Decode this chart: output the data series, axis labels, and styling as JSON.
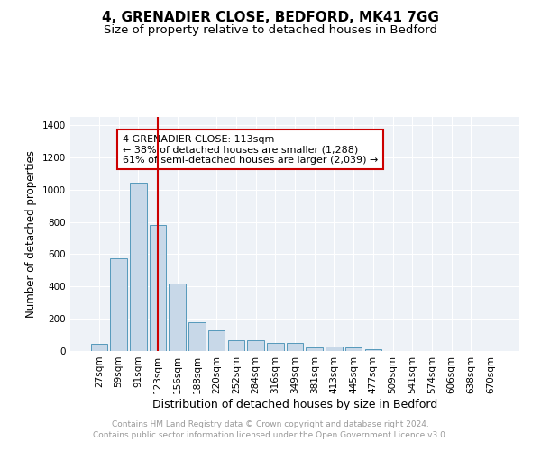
{
  "title": "4, GRENADIER CLOSE, BEDFORD, MK41 7GG",
  "subtitle": "Size of property relative to detached houses in Bedford",
  "xlabel": "Distribution of detached houses by size in Bedford",
  "ylabel": "Number of detached properties",
  "bar_color": "#c8d8e8",
  "bar_edge_color": "#5599bb",
  "background_color": "#eef2f7",
  "grid_color": "#ffffff",
  "annotation_box_color": "#cc0000",
  "vline_color": "#cc0000",
  "vline_x_index": 3,
  "annotation_text": "4 GRENADIER CLOSE: 113sqm\n← 38% of detached houses are smaller (1,288)\n61% of semi-detached houses are larger (2,039) →",
  "categories": [
    "27sqm",
    "59sqm",
    "91sqm",
    "123sqm",
    "156sqm",
    "188sqm",
    "220sqm",
    "252sqm",
    "284sqm",
    "316sqm",
    "349sqm",
    "381sqm",
    "413sqm",
    "445sqm",
    "477sqm",
    "509sqm",
    "541sqm",
    "574sqm",
    "606sqm",
    "638sqm",
    "670sqm"
  ],
  "values": [
    47,
    572,
    1043,
    783,
    420,
    178,
    130,
    68,
    65,
    48,
    48,
    25,
    27,
    20,
    12,
    0,
    0,
    0,
    0,
    0,
    0
  ],
  "ylim": [
    0,
    1450
  ],
  "yticks": [
    0,
    200,
    400,
    600,
    800,
    1000,
    1200,
    1400
  ],
  "footer": "Contains HM Land Registry data © Crown copyright and database right 2024.\nContains public sector information licensed under the Open Government Licence v3.0.",
  "footer_color": "#999999",
  "title_fontsize": 11,
  "subtitle_fontsize": 9.5,
  "xlabel_fontsize": 9,
  "ylabel_fontsize": 8.5,
  "tick_fontsize": 7.5,
  "annotation_fontsize": 8,
  "footer_fontsize": 6.5
}
